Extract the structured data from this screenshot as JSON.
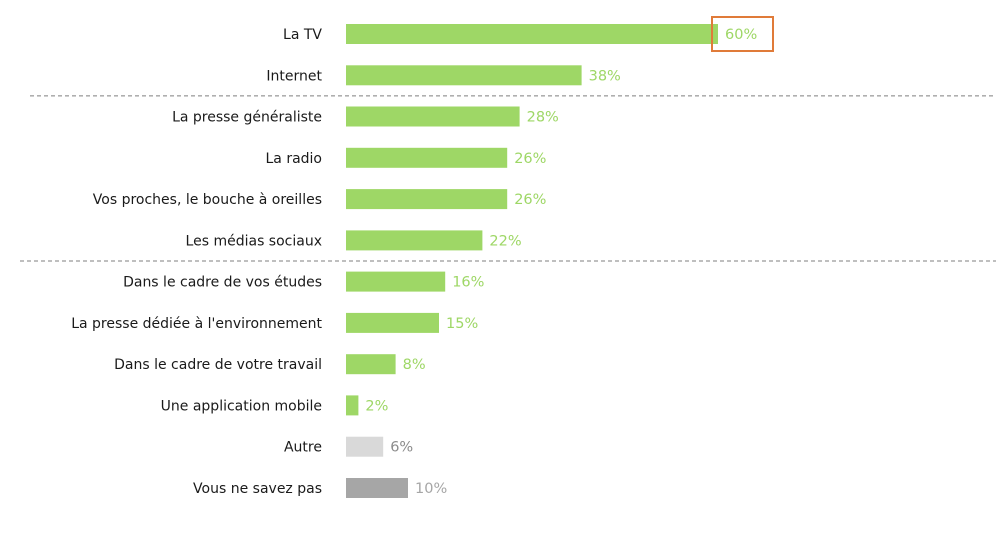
{
  "chart_data": {
    "type": "bar",
    "orientation": "horizontal",
    "categories": [
      "La TV",
      "Internet",
      "La presse généraliste",
      "La radio",
      "Vos proches, le bouche à oreilles",
      "Les médias sociaux",
      "Dans le cadre de vos études",
      "La presse dédiée à l'environnement",
      "Dans le cadre de votre travail",
      "Une application mobile",
      "Autre",
      "Vous ne savez pas"
    ],
    "values": [
      60,
      38,
      28,
      26,
      26,
      22,
      16,
      15,
      8,
      2,
      6,
      10
    ],
    "value_labels": [
      "60%",
      "38%",
      "28%",
      "26%",
      "26%",
      "22%",
      "16%",
      "15%",
      "8%",
      "2%",
      "6%",
      "10%"
    ],
    "unit": "%",
    "xlim": [
      0,
      100
    ],
    "grid": false,
    "legend": "none",
    "group_separators_after_index": [
      1,
      5
    ],
    "highlighted_index": 0,
    "colors": {
      "main": "#9ed766",
      "main_label": "#9ed766",
      "autre": "#d9d9d9",
      "autre_label": "#8c8c8c",
      "nsp": "#a6a6a6",
      "nsp_label": "#a6a6a6",
      "highlight": "#e07b39",
      "separator": "#7f7f7f",
      "category_text": "#1a1a1a"
    },
    "bar_colors": [
      "main",
      "main",
      "main",
      "main",
      "main",
      "main",
      "main",
      "main",
      "main",
      "main",
      "autre",
      "nsp"
    ]
  }
}
